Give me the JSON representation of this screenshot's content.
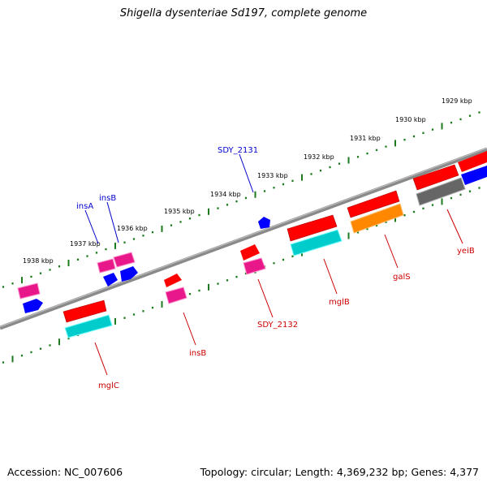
{
  "title": "Shigella dysenteriae Sd197, complete genome",
  "footer": {
    "accession": "Accession: NC_007606",
    "stats": "Topology: circular; Length: 4,369,232 bp; Genes: 4,377"
  },
  "colors": {
    "backbone": "#808080",
    "tick": "#1e7a1e",
    "label_forward": "#0000cc",
    "label_reverse": "#cc0000"
  },
  "scale_labels": [
    "1929 kbp",
    "1930 kbp",
    "1931 kbp",
    "1932 kbp",
    "1933 kbp",
    "1934 kbp",
    "1935 kbp",
    "1936 kbp",
    "1937 kbp",
    "1938 kbp"
  ],
  "genes": [
    {
      "label": "SDY_2131",
      "strand": "forward"
    },
    {
      "label": "insA",
      "strand": "forward"
    },
    {
      "label": "insB",
      "strand": "forward"
    },
    {
      "label": "yeiB",
      "strand": "reverse"
    },
    {
      "label": "galS",
      "strand": "reverse"
    },
    {
      "label": "mglB",
      "strand": "reverse"
    },
    {
      "label": "SDY_2132",
      "strand": "reverse"
    },
    {
      "label": "insB",
      "strand": "reverse"
    },
    {
      "label": "mglC",
      "strand": "reverse"
    }
  ],
  "features": [
    {
      "color": "#ff0000",
      "kind": "arrow"
    },
    {
      "color": "#0000ff",
      "kind": "arrow"
    },
    {
      "color": "#ee1188",
      "kind": "bar"
    },
    {
      "color": "#00cccc",
      "kind": "bar"
    },
    {
      "color": "#ff8800",
      "kind": "bar"
    },
    {
      "color": "#666666",
      "kind": "bar"
    }
  ]
}
